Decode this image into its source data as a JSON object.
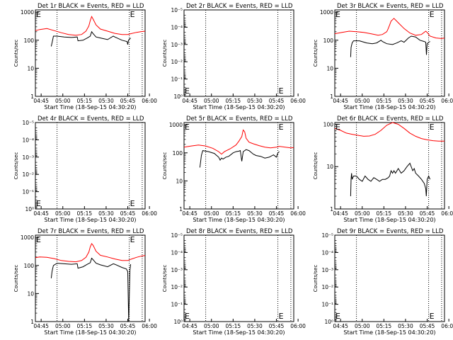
{
  "figure": {
    "x_tick_labels": [
      "04:45",
      "05:00",
      "05:15",
      "05:30",
      "05:45",
      "06:00"
    ],
    "x_axis_label": "Start Time (18-Sep-15 04:30:20)",
    "y_axis_label": "Counts/sec",
    "event_marker": "E"
  },
  "chart_data": [
    {
      "type": "line",
      "title": "Det 1r BLACK = Events, RED = LLD",
      "xlabel": "Start Time (18-Sep-15 04:30:20)",
      "ylabel": "Counts/sec",
      "x_range_min": [
        0,
        76
      ],
      "y_scale": "log",
      "y_ticks": [
        "1",
        "10",
        "100",
        "1000"
      ],
      "ylim": [
        1,
        1200
      ],
      "grid": false,
      "event_lines_min": [
        15,
        65,
        74
      ],
      "series": [
        {
          "name": "RED = LLD",
          "color": "#ff0000",
          "x": [
            0,
            3,
            8,
            13,
            18,
            23,
            28,
            32,
            35,
            37,
            38,
            39,
            40,
            42,
            45,
            50,
            55,
            60,
            64,
            66,
            70,
            73,
            76
          ],
          "y": [
            220,
            240,
            260,
            220,
            185,
            160,
            150,
            160,
            210,
            320,
            500,
            700,
            560,
            350,
            250,
            210,
            175,
            160,
            160,
            170,
            190,
            200,
            210
          ]
        },
        {
          "name": "BLACK = Events",
          "color": "#000000",
          "x": [
            11,
            11.5,
            12,
            12.5,
            15,
            20,
            25,
            29,
            29.5,
            33,
            36,
            38,
            39,
            40,
            42,
            45,
            50,
            54,
            55,
            60,
            63.5,
            64,
            64.5,
            66
          ],
          "y": [
            60,
            80,
            105,
            140,
            140,
            130,
            125,
            130,
            95,
            100,
            120,
            140,
            200,
            170,
            130,
            120,
            105,
            140,
            130,
            100,
            90,
            70,
            100,
            120
          ]
        }
      ]
    },
    {
      "type": "line",
      "title": "Det 2r BLACK = Events, RED = LLD",
      "xlabel": "Start Time (18-Sep-15 04:30:20)",
      "ylabel": "Counts/sec",
      "x_range_min": [
        0,
        76
      ],
      "y_scale": "log",
      "y_ticks": [
        "10⁰",
        "10⁻¹",
        "10⁻²",
        "10⁻³",
        "10⁻⁴",
        "10⁻⁵"
      ],
      "ylim": [
        1,
        1e-05
      ],
      "grid": false,
      "event_lines_min": [
        15,
        65,
        74
      ],
      "series": []
    },
    {
      "type": "line",
      "title": "Det 3r BLACK = Events, RED = LLD",
      "xlabel": "Start Time (18-Sep-15 04:30:20)",
      "ylabel": "Counts/sec",
      "x_range_min": [
        0,
        76
      ],
      "y_scale": "log",
      "y_ticks": [
        "1",
        "10",
        "100",
        "1000"
      ],
      "ylim": [
        1,
        1200
      ],
      "grid": false,
      "event_lines_min": [
        15,
        65,
        74
      ],
      "series": [
        {
          "name": "RED = LLD",
          "color": "#ff0000",
          "x": [
            0,
            5,
            10,
            15,
            20,
            25,
            30,
            33,
            36,
            37,
            38,
            39,
            41,
            44,
            48,
            52,
            56,
            60,
            63,
            64,
            66,
            70,
            74,
            76
          ],
          "y": [
            170,
            190,
            210,
            200,
            190,
            170,
            150,
            160,
            200,
            260,
            350,
            480,
            600,
            420,
            260,
            180,
            150,
            160,
            210,
            190,
            140,
            120,
            115,
            120
          ]
        },
        {
          "name": "BLACK = Events",
          "color": "#000000",
          "x": [
            11,
            11.3,
            12,
            13,
            17,
            22,
            26,
            29,
            32,
            33,
            36,
            40,
            43,
            46,
            48,
            51,
            53,
            56,
            59,
            62,
            63,
            63.5,
            64,
            65,
            66
          ],
          "y": [
            25,
            55,
            80,
            95,
            95,
            80,
            75,
            80,
            100,
            90,
            75,
            70,
            80,
            95,
            85,
            120,
            140,
            130,
            100,
            90,
            85,
            30,
            75,
            85,
            90
          ]
        }
      ]
    },
    {
      "type": "line",
      "title": "Det 4r BLACK = Events, RED = LLD",
      "xlabel": "Start Time (18-Sep-15 04:30:20)",
      "ylabel": "Counts/sec",
      "x_range_min": [
        0,
        76
      ],
      "y_scale": "log",
      "y_ticks": [
        "10⁰",
        "10⁻¹",
        "10⁻²",
        "10⁻³",
        "10⁻⁴",
        "10⁻⁵"
      ],
      "ylim": [
        1,
        1e-05
      ],
      "grid": false,
      "event_lines_min": [
        15,
        65,
        74
      ],
      "series": []
    },
    {
      "type": "line",
      "title": "Det 5r BLACK = Events, RED = LLD",
      "xlabel": "Start Time (18-Sep-15 04:30:20)",
      "ylabel": "Counts/sec",
      "x_range_min": [
        0,
        76
      ],
      "y_scale": "log",
      "y_ticks": [
        "1",
        "10",
        "100",
        "1000"
      ],
      "ylim": [
        1,
        1200
      ],
      "grid": false,
      "event_lines_min": [
        15,
        65,
        74
      ],
      "series": [
        {
          "name": "RED = LLD",
          "color": "#ff0000",
          "x": [
            0,
            5,
            10,
            15,
            20,
            24,
            26,
            28,
            32,
            36,
            38,
            40,
            41,
            42,
            43,
            45,
            48,
            52,
            56,
            60,
            64,
            66,
            70,
            74,
            76
          ],
          "y": [
            160,
            175,
            190,
            175,
            145,
            110,
            90,
            110,
            140,
            190,
            260,
            380,
            650,
            560,
            330,
            240,
            210,
            180,
            160,
            150,
            160,
            170,
            160,
            150,
            155
          ]
        },
        {
          "name": "BLACK = Events",
          "color": "#000000",
          "x": [
            11,
            11.5,
            12,
            12.5,
            13,
            17,
            21,
            24,
            25,
            26,
            27,
            29,
            31,
            34,
            36,
            38,
            39,
            40,
            41,
            43,
            45,
            48,
            50,
            53,
            56,
            59,
            62,
            64,
            65,
            66
          ],
          "y": [
            30,
            50,
            80,
            100,
            120,
            110,
            95,
            70,
            55,
            65,
            60,
            70,
            75,
            100,
            110,
            115,
            120,
            50,
            110,
            130,
            120,
            90,
            80,
            75,
            65,
            70,
            85,
            70,
            100,
            110
          ]
        }
      ]
    },
    {
      "type": "line",
      "title": "Det 6r BLACK = Events, RED = LLD",
      "xlabel": "Start Time (18-Sep-15 04:30:20)",
      "ylabel": "Counts/sec",
      "x_range_min": [
        0,
        76
      ],
      "y_scale": "log",
      "y_ticks": [
        "1",
        "10",
        "100"
      ],
      "ylim": [
        1,
        110
      ],
      "grid": false,
      "event_lines_min": [
        15,
        65,
        74
      ],
      "series": [
        {
          "name": "RED = LLD",
          "color": "#ff0000",
          "x": [
            0,
            4,
            8,
            12,
            16,
            20,
            24,
            28,
            32,
            36,
            40,
            44,
            48,
            52,
            56,
            60,
            64,
            68,
            72,
            76
          ],
          "y": [
            80,
            72,
            62,
            58,
            55,
            52,
            53,
            58,
            72,
            95,
            110,
            100,
            80,
            62,
            52,
            46,
            43,
            41,
            40,
            40
          ]
        },
        {
          "name": "BLACK = Events",
          "color": "#000000",
          "x": [
            11,
            11.3,
            11.6,
            12,
            13,
            15,
            17,
            19,
            21,
            23,
            25,
            27,
            29,
            31,
            33,
            35,
            37,
            38,
            39,
            40,
            41,
            42,
            44,
            46,
            48,
            50,
            52,
            54,
            55,
            56,
            58,
            60,
            62,
            63,
            63.4,
            64,
            65,
            66
          ],
          "y": [
            2,
            5,
            7,
            5,
            6,
            6,
            5,
            4.5,
            6,
            5,
            4.5,
            5.5,
            5,
            4.5,
            5,
            5,
            5.5,
            6,
            8,
            7,
            8,
            7,
            9,
            7,
            8,
            10,
            12,
            8,
            9,
            7,
            6,
            5,
            4,
            3,
            2,
            5,
            6,
            5
          ]
        }
      ]
    },
    {
      "type": "line",
      "title": "Det 7r BLACK = Events, RED = LLD",
      "xlabel": "Start Time (18-Sep-15 04:30:20)",
      "ylabel": "Counts/sec",
      "x_range_min": [
        0,
        76
      ],
      "y_scale": "log",
      "y_ticks": [
        "1",
        "10",
        "100",
        "1000"
      ],
      "ylim": [
        1,
        1200
      ],
      "grid": false,
      "event_lines_min": [
        15,
        65,
        74
      ],
      "series": [
        {
          "name": "RED = LLD",
          "color": "#ff0000",
          "x": [
            0,
            3,
            8,
            13,
            18,
            23,
            28,
            32,
            35,
            37,
            38,
            39,
            40,
            42,
            45,
            50,
            55,
            60,
            64,
            66,
            70,
            74,
            76
          ],
          "y": [
            190,
            200,
            195,
            175,
            150,
            140,
            135,
            150,
            195,
            300,
            460,
            600,
            520,
            320,
            230,
            200,
            170,
            150,
            150,
            165,
            195,
            220,
            225
          ]
        },
        {
          "name": "BLACK = Events",
          "color": "#000000",
          "x": [
            11,
            11.5,
            12,
            12.5,
            15,
            20,
            25,
            29,
            29.5,
            33,
            36,
            38,
            39,
            40,
            42,
            45,
            50,
            54,
            55,
            60,
            63,
            64,
            64.6,
            65.5,
            66
          ],
          "y": [
            35,
            60,
            80,
            100,
            120,
            115,
            110,
            115,
            80,
            90,
            110,
            125,
            180,
            160,
            120,
            105,
            90,
            115,
            110,
            85,
            75,
            60,
            1,
            70,
            110
          ]
        }
      ]
    },
    {
      "type": "line",
      "title": "Det 8r BLACK = Events, RED = LLD",
      "xlabel": "Start Time (18-Sep-15 04:30:20)",
      "ylabel": "Counts/sec",
      "x_range_min": [
        0,
        76
      ],
      "y_scale": "log",
      "y_ticks": [
        "10⁰",
        "10⁻¹",
        "10⁻²",
        "10⁻³",
        "10⁻⁴",
        "10⁻⁵"
      ],
      "ylim": [
        1,
        1e-05
      ],
      "grid": false,
      "event_lines_min": [
        15,
        65,
        74
      ],
      "series": []
    },
    {
      "type": "line",
      "title": "Det 9r BLACK = Events, RED = LLD",
      "xlabel": "Start Time (18-Sep-15 04:30:20)",
      "ylabel": "Counts/sec",
      "x_range_min": [
        0,
        76
      ],
      "y_scale": "log",
      "y_ticks": [
        "10⁰",
        "10⁻¹",
        "10⁻²",
        "10⁻³",
        "10⁻⁴",
        "10⁻⁵"
      ],
      "ylim": [
        1,
        1e-05
      ],
      "grid": false,
      "event_lines_min": [
        15,
        65,
        74
      ],
      "series": []
    }
  ]
}
